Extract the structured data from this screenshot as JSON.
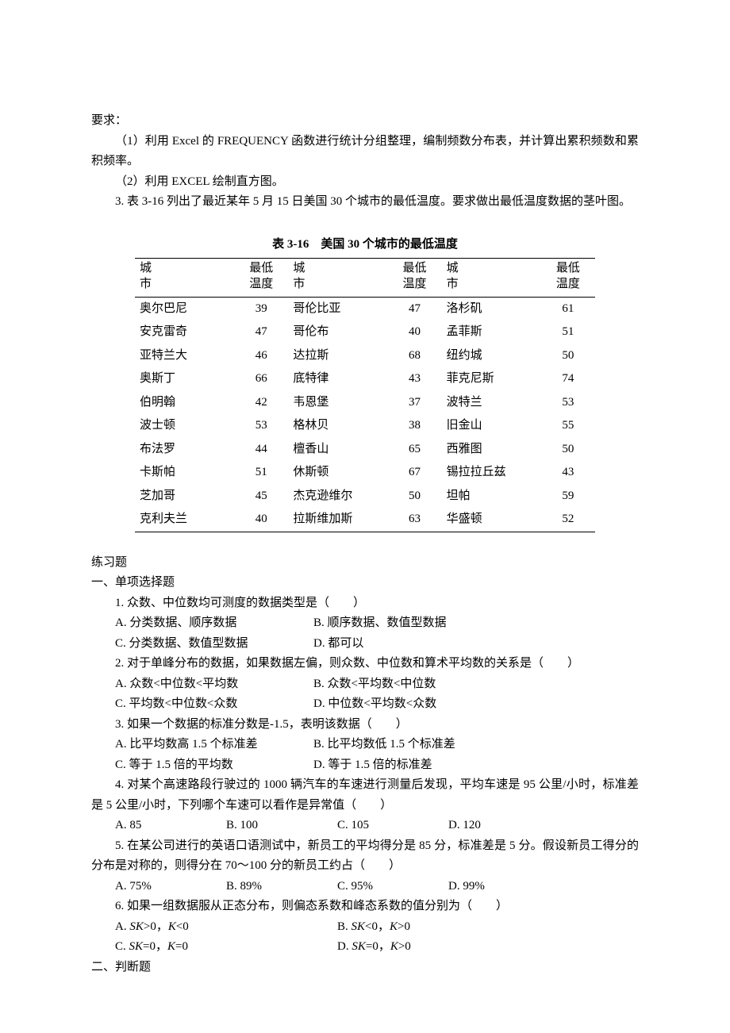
{
  "intro": {
    "req_label": "要求：",
    "req1": "（1）利用 Excel 的 FREQUENCY 函数进行统计分组整理，编制频数分布表，并计算出累积频数和累积频率。",
    "req2": "（2）利用 EXCEL 绘制直方图。",
    "req3": "3. 表 3-16 列出了最近某年 5 月 15 日美国 30 个城市的最低温度。要求做出最低温度数据的茎叶图。"
  },
  "table": {
    "caption": "表 3-16　美国 30 个城市的最低温度",
    "header_city_top": "城",
    "header_city_bot": "市",
    "header_temp_top": "最低",
    "header_temp_bot": "温度",
    "rows": [
      {
        "c1": "奥尔巴尼",
        "t1": "39",
        "c2": "哥伦比亚",
        "t2": "47",
        "c3": "洛杉矶",
        "t3": "61"
      },
      {
        "c1": "安克雷奇",
        "t1": "47",
        "c2": "哥伦布",
        "t2": "40",
        "c3": "孟菲斯",
        "t3": "51"
      },
      {
        "c1": "亚特兰大",
        "t1": "46",
        "c2": "达拉斯",
        "t2": "68",
        "c3": "纽约城",
        "t3": "50"
      },
      {
        "c1": "奥斯丁",
        "t1": "66",
        "c2": "底特律",
        "t2": "43",
        "c3": "菲克尼斯",
        "t3": "74"
      },
      {
        "c1": "伯明翰",
        "t1": "42",
        "c2": "韦恩堡",
        "t2": "37",
        "c3": "波特兰",
        "t3": "53"
      },
      {
        "c1": "波士顿",
        "t1": "53",
        "c2": "格林贝",
        "t2": "38",
        "c3": "旧金山",
        "t3": "55"
      },
      {
        "c1": "布法罗",
        "t1": "44",
        "c2": "檀香山",
        "t2": "65",
        "c3": "西雅图",
        "t3": "50"
      },
      {
        "c1": "卡斯帕",
        "t1": "51",
        "c2": "休斯顿",
        "t2": "67",
        "c3": "锡拉拉丘兹",
        "t3": "43"
      },
      {
        "c1": "芝加哥",
        "t1": "45",
        "c2": "杰克逊维尔",
        "t2": "50",
        "c3": "坦帕",
        "t3": "59"
      },
      {
        "c1": "克利夫兰",
        "t1": "40",
        "c2": "拉斯维加斯",
        "t2": "63",
        "c3": "华盛顿",
        "t3": "52"
      }
    ]
  },
  "exercises": {
    "heading": "练习题",
    "sec1_heading": "一、单项选择题",
    "q1": {
      "stem": "1. 众数、中位数均可测度的数据类型是（　　）",
      "a": "A. 分类数据、顺序数据",
      "b": "B. 顺序数据、数值型数据",
      "c": "C. 分类数据、数值型数据",
      "d": "D. 都可以"
    },
    "q2": {
      "stem": "2. 对于单峰分布的数据，如果数据左偏，则众数、中位数和算术平均数的关系是（　　）",
      "a": "A.  众数<中位数<平均数",
      "b": "B. 众数<平均数<中位数",
      "c": "C. 平均数<中位数<众数",
      "d": "D. 中位数<平均数<众数"
    },
    "q3": {
      "stem": "3. 如果一个数据的标准分数是-1.5，表明该数据（　　）",
      "a": "A. 比平均数高 1.5 个标准差",
      "b": "B. 比平均数低 1.5 个标准差",
      "c": "C. 等于 1.5 倍的平均数",
      "d": "D. 等于 1.5 倍的标准差"
    },
    "q4": {
      "stem": "4. 对某个高速路段行驶过的 1000 辆汽车的车速进行测量后发现，平均车速是 95 公里/小时，标准差是 5 公里/小时，下列哪个车速可以看作是异常值（　　）",
      "a": "A. 85",
      "b": "B. 100",
      "c": "C. 105",
      "d": "D. 120"
    },
    "q5": {
      "stem": "5. 在某公司进行的英语口语测试中，新员工的平均得分是 85 分，标准差是 5 分。假设新员工得分的分布是对称的，则得分在 70～100 分的新员工约占（　　）",
      "a": "A. 75%",
      "b": "B. 89%",
      "c": "C.  95%",
      "d": "D. 99%"
    },
    "q6": {
      "stem": "6. 如果一组数据服从正态分布，则偏态系数和峰态系数的值分别为（　　）",
      "a_pre": "A.  ",
      "a_sk": "SK",
      "a_mid": ">0，",
      "a_k": "K",
      "a_post": "<0",
      "b_pre": "B.  ",
      "b_sk": "SK",
      "b_mid": "<0，",
      "b_k": "K",
      "b_post": ">0",
      "c_pre": "C.  ",
      "c_sk": "SK",
      "c_mid": "=0，",
      "c_k": "K",
      "c_post": "=0",
      "d_pre": "D.  ",
      "d_sk": "SK",
      "d_mid": "=0，",
      "d_k": "K",
      "d_post": ">0"
    },
    "sec2_heading": "二、判断题"
  }
}
